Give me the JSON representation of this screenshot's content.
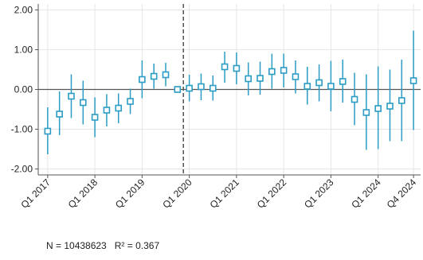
{
  "chart_data": {
    "type": "scatter",
    "subtype": "event-study coefficient plot with confidence intervals",
    "x_tick_labels": [
      "Q1 2017",
      "Q1 2018",
      "Q1 2019",
      "Q1 2020",
      "Q1 2021",
      "Q1 2022",
      "Q1 2023",
      "Q1 2024",
      "Q4 2024"
    ],
    "y_tick_labels": [
      "2.00",
      "1.00",
      "0.00",
      "-1.00",
      "-2.00"
    ],
    "ylim": [
      -2.0,
      2.0
    ],
    "reference_line_y": 0,
    "event_line_x": "Q1 2020",
    "grid": true,
    "colors": {
      "marker": "#2b9cc4",
      "ci": "#2b9cc4",
      "zero_line": "#555555",
      "event_line": "#555555",
      "grid": "#e6e6e6"
    },
    "points": [
      {
        "q": 1,
        "y": -1.05,
        "lo": -1.63,
        "hi": -0.45
      },
      {
        "q": 2,
        "y": -0.62,
        "lo": -1.15,
        "hi": -0.05
      },
      {
        "q": 3,
        "y": -0.17,
        "lo": -0.72,
        "hi": 0.38
      },
      {
        "q": 4,
        "y": -0.33,
        "lo": -0.88,
        "hi": 0.22
      },
      {
        "q": 5,
        "y": -0.7,
        "lo": -1.2,
        "hi": -0.2
      },
      {
        "q": 6,
        "y": -0.52,
        "lo": -0.93,
        "hi": -0.12
      },
      {
        "q": 7,
        "y": -0.47,
        "lo": -0.85,
        "hi": -0.1
      },
      {
        "q": 8,
        "y": -0.3,
        "lo": -0.62,
        "hi": 0.02
      },
      {
        "q": 9,
        "y": 0.25,
        "lo": -0.22,
        "hi": 0.73
      },
      {
        "q": 10,
        "y": 0.33,
        "lo": 0.02,
        "hi": 0.65
      },
      {
        "q": 11,
        "y": 0.37,
        "lo": 0.08,
        "hi": 0.67
      },
      {
        "q": 12,
        "y": 0.0,
        "lo": 0.0,
        "hi": 0.0
      },
      {
        "q": 13,
        "y": 0.03,
        "lo": -0.3,
        "hi": 0.37
      },
      {
        "q": 14,
        "y": 0.07,
        "lo": -0.27,
        "hi": 0.4
      },
      {
        "q": 15,
        "y": 0.03,
        "lo": -0.28,
        "hi": 0.35
      },
      {
        "q": 16,
        "y": 0.57,
        "lo": 0.17,
        "hi": 0.95
      },
      {
        "q": 17,
        "y": 0.53,
        "lo": 0.13,
        "hi": 0.93
      },
      {
        "q": 18,
        "y": 0.27,
        "lo": -0.15,
        "hi": 0.68
      },
      {
        "q": 19,
        "y": 0.28,
        "lo": -0.13,
        "hi": 0.7
      },
      {
        "q": 20,
        "y": 0.45,
        "lo": 0.02,
        "hi": 0.9
      },
      {
        "q": 21,
        "y": 0.48,
        "lo": 0.05,
        "hi": 0.9
      },
      {
        "q": 22,
        "y": 0.32,
        "lo": -0.1,
        "hi": 0.73
      },
      {
        "q": 23,
        "y": 0.08,
        "lo": -0.38,
        "hi": 0.57
      },
      {
        "q": 24,
        "y": 0.17,
        "lo": -0.3,
        "hi": 0.63
      },
      {
        "q": 25,
        "y": 0.08,
        "lo": -0.55,
        "hi": 0.72
      },
      {
        "q": 26,
        "y": 0.2,
        "lo": -0.33,
        "hi": 0.75
      },
      {
        "q": 27,
        "y": -0.25,
        "lo": -0.9,
        "hi": 0.42
      },
      {
        "q": 28,
        "y": -0.58,
        "lo": -1.52,
        "hi": 0.38
      },
      {
        "q": 29,
        "y": -0.48,
        "lo": -1.5,
        "hi": 0.58
      },
      {
        "q": 30,
        "y": -0.42,
        "lo": -1.3,
        "hi": 0.5
      },
      {
        "q": 31,
        "y": -0.28,
        "lo": -1.3,
        "hi": 0.75
      },
      {
        "q": 32,
        "y": 0.22,
        "lo": -1.02,
        "hi": 1.48
      }
    ],
    "x_tick_positions": [
      1,
      5,
      9,
      13,
      17,
      21,
      25,
      29,
      32
    ]
  },
  "footnote": {
    "n": "N = 10438623",
    "r2": "R² = 0.367"
  }
}
